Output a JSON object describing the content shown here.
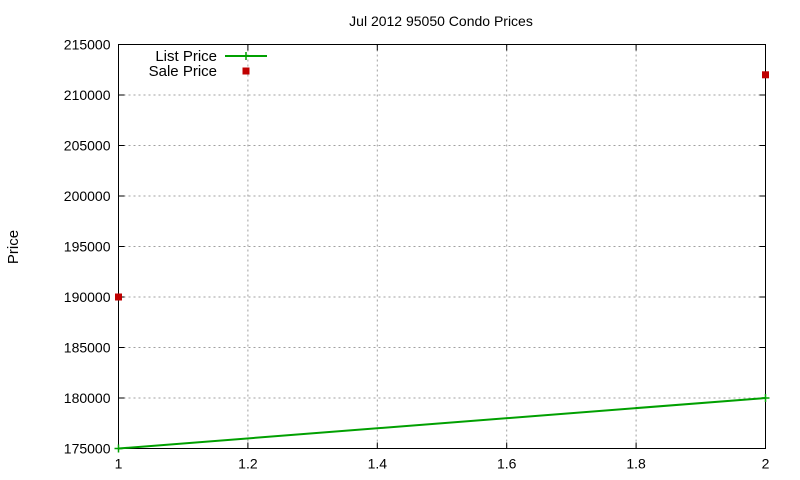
{
  "chart_data": {
    "type": "line",
    "title": "Jul 2012 95050 Condo Prices",
    "xlabel": "",
    "ylabel": "Price",
    "xlim": [
      1,
      2
    ],
    "ylim": [
      175000,
      215000
    ],
    "x_ticks": [
      1,
      1.2,
      1.4,
      1.6,
      1.8,
      2
    ],
    "x_tick_labels": [
      "1",
      "1.2",
      "1.4",
      "1.6",
      "1.8",
      "2"
    ],
    "y_ticks": [
      175000,
      180000,
      185000,
      190000,
      195000,
      200000,
      205000,
      210000,
      215000
    ],
    "y_tick_labels": [
      "175000",
      "180000",
      "185000",
      "190000",
      "195000",
      "200000",
      "205000",
      "210000",
      "215000"
    ],
    "grid": true,
    "legend_position": "top-left",
    "series": [
      {
        "name": "List Price",
        "style": "linespoints",
        "color": "#00a000",
        "x": [
          1,
          2
        ],
        "y": [
          175000,
          180000
        ]
      },
      {
        "name": "Sale Price",
        "style": "points",
        "color": "#c00000",
        "x": [
          1,
          2
        ],
        "y": [
          190000,
          212000
        ]
      }
    ]
  }
}
